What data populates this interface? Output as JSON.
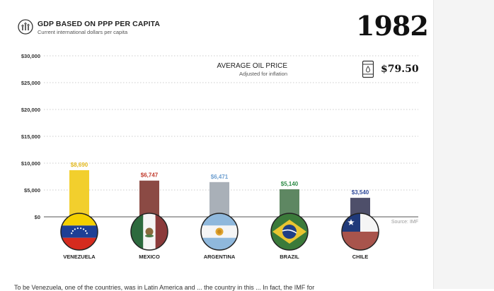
{
  "header": {
    "title": "GDP BASED ON PPP PER CAPITA",
    "subtitle": "Current international dollars per capita",
    "year": "1982"
  },
  "oil": {
    "title": "AVERAGE OIL PRICE",
    "subtitle": "Adjusted for inflation",
    "price": "$79.50"
  },
  "source": "Source: IMF",
  "bottom_text": "To be Venezuela, one of the countries, was in Latin America and ... the country in this ... In fact, the IMF for",
  "chart_data": {
    "type": "bar",
    "title": "GDP BASED ON PPP PER CAPITA",
    "subtitle": "Current international dollars per capita",
    "ylim": [
      0,
      30000
    ],
    "yticks": [
      0,
      5000,
      10000,
      15000,
      20000,
      25000,
      30000
    ],
    "ytick_labels": [
      "$0",
      "$5,000",
      "$10,000",
      "$15,000",
      "$20,000",
      "$25,000",
      "$30,000"
    ],
    "grid": true,
    "categories": [
      "VENEZUELA",
      "MEXICO",
      "ARGENTINA",
      "BRAZIL",
      "CHILE"
    ],
    "values": [
      8690,
      6747,
      6471,
      5140,
      3540
    ],
    "value_labels": [
      "$8,690",
      "$6,747",
      "$6,471",
      "$5,140",
      "$3,540"
    ],
    "bar_colors": [
      "#f2cf2d",
      "#8b4a44",
      "#a9b0b8",
      "#5e8762",
      "#4e4f6a"
    ],
    "label_colors": [
      "#e2b81c",
      "#c0392b",
      "#6d9fd0",
      "#2e8b46",
      "#2f4a9a"
    ],
    "flags": [
      "venezuela-flag",
      "mexico-flag",
      "argentina-flag",
      "brazil-flag",
      "chile-flag"
    ]
  }
}
